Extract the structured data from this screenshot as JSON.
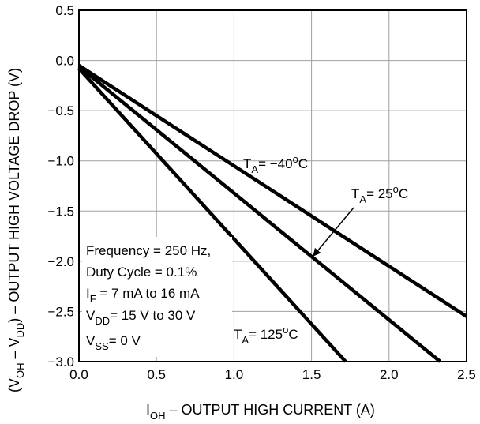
{
  "chart_data": {
    "type": "line",
    "xlabel": {
      "main": "I",
      "sub": "OH",
      "rest": " – OUTPUT HIGH CURRENT (A)"
    },
    "ylabel": {
      "p1": "(V",
      "s1": "OH",
      "p2": " – V",
      "s2": "DD",
      "p3": ") – OUTPUT HIGH VOLTAGE DROP (V)"
    },
    "xlim": [
      0.0,
      2.5
    ],
    "ylim": [
      -3.0,
      0.5
    ],
    "x_ticks": [
      "0.0",
      "0.5",
      "1.0",
      "1.5",
      "2.0",
      "2.5"
    ],
    "y_ticks": [
      "0.5",
      "0.0",
      "−0.5",
      "−1.0",
      "−1.5",
      "−2.0",
      "−2.5",
      "−3.0"
    ],
    "grid": true,
    "series": [
      {
        "name": "T_A = −40°C",
        "x": [
          0.0,
          2.5
        ],
        "y": [
          -0.05,
          -2.55
        ]
      },
      {
        "name": "T_A = 25°C",
        "x": [
          0.0,
          2.33
        ],
        "y": [
          -0.06,
          -3.0
        ]
      },
      {
        "name": "T_A = 125°C",
        "x": [
          0.0,
          1.72
        ],
        "y": [
          -0.08,
          -3.0
        ]
      }
    ],
    "labels": {
      "t40": {
        "a": "T",
        "b": "A",
        "c": "= −40",
        "d": "o",
        "e": "C"
      },
      "t25": {
        "a": "T",
        "b": "A",
        "c": "= 25",
        "d": "o",
        "e": "C"
      },
      "t125": {
        "a": "T",
        "b": "A",
        "c": "= 125",
        "d": "o",
        "e": "C"
      }
    },
    "annotations": {
      "frequency": "Frequency = 250 Hz,",
      "duty": "Duty Cycle = 0.1%",
      "if": {
        "a": "I",
        "b": "F",
        "c": " = 7 mA to 16 mA"
      },
      "vdd": {
        "a": "V",
        "b": "DD",
        "c": "= 15 V to 30 V"
      },
      "vss": {
        "a": "V",
        "b": "SS",
        "c": "= 0 V"
      }
    }
  }
}
